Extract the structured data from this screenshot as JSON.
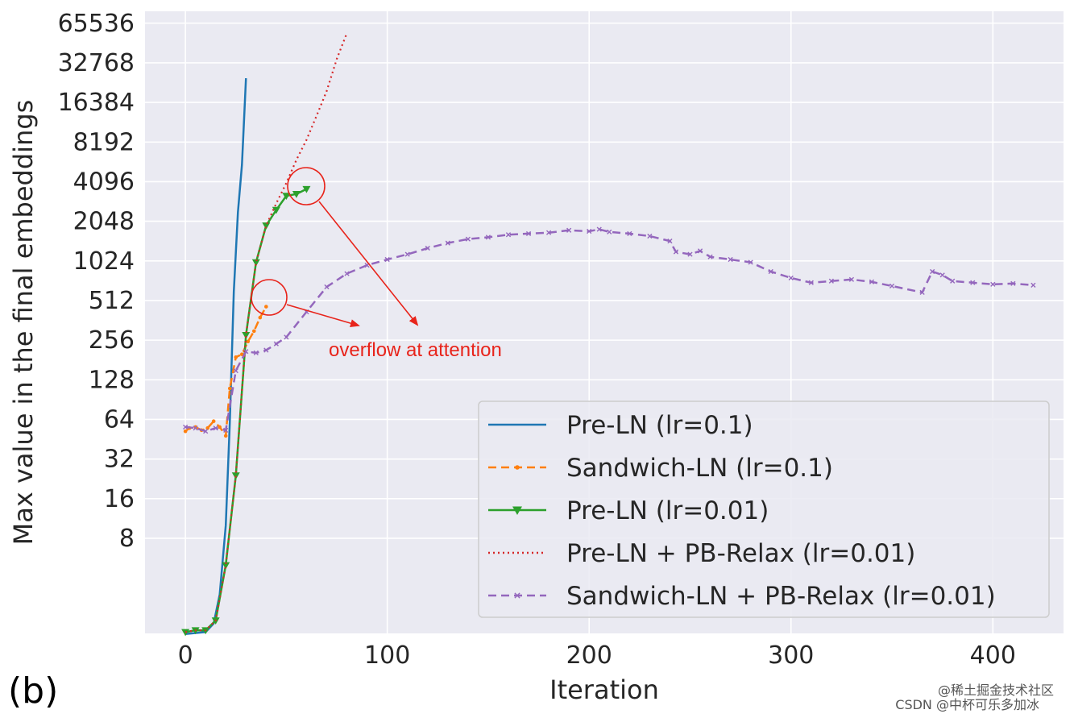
{
  "chart_data": {
    "type": "line",
    "panel_label": "(b)",
    "xlabel": "Iteration",
    "ylabel": "Max value in the final embeddings",
    "xscale": "linear",
    "yscale": "log2",
    "xlim": [
      -20,
      435
    ],
    "ylim_log2": [
      0.6,
      16.3
    ],
    "x_ticks": [
      0,
      100,
      200,
      300,
      400
    ],
    "y_ticks": [
      8,
      16,
      32,
      64,
      128,
      256,
      512,
      1024,
      2048,
      4096,
      8192,
      16384,
      32768,
      65536
    ],
    "y_tick_labels": [
      "8",
      "16",
      "32",
      "64",
      "128",
      "256",
      "512",
      "1024",
      "2048",
      "4096",
      "8192",
      "16384",
      "32768",
      "65536"
    ],
    "grid": true,
    "legend_position": "lower-right",
    "series": [
      {
        "name": "Pre-LN (lr=0.1)",
        "color": "#1f77b4",
        "style": "solid",
        "marker": "none",
        "x": [
          0,
          10,
          14,
          17,
          20,
          22,
          24,
          26,
          28,
          30
        ],
        "y": [
          1.5,
          1.55,
          1.8,
          3,
          10,
          60,
          600,
          2400,
          5500,
          25000
        ]
      },
      {
        "name": "Sandwich-LN (lr=0.1)",
        "color": "#ff7f0e",
        "style": "dashed",
        "marker": "dot",
        "x": [
          0,
          2,
          5,
          8,
          11,
          14,
          17,
          20,
          22,
          25,
          28,
          31,
          34,
          37,
          40
        ],
        "y": [
          52,
          55,
          56,
          53,
          55,
          62,
          56,
          48,
          110,
          190,
          200,
          250,
          300,
          380,
          460
        ]
      },
      {
        "name": "Pre-LN (lr=0.01)",
        "color": "#2ca02c",
        "style": "solid",
        "marker": "triangle-down",
        "x": [
          0,
          5,
          10,
          15,
          20,
          25,
          30,
          35,
          40,
          45,
          50,
          55,
          60
        ],
        "y": [
          1.55,
          1.6,
          1.6,
          1.9,
          5,
          24,
          280,
          1000,
          1900,
          2500,
          3200,
          3300,
          3600
        ]
      },
      {
        "name": "Pre-LN + PB-Relax (lr=0.01)",
        "color": "#d62728",
        "style": "dotted",
        "marker": "none",
        "x": [
          0,
          5,
          10,
          15,
          20,
          25,
          30,
          35,
          40,
          45,
          50,
          55,
          60,
          65,
          70,
          75,
          80
        ],
        "y": [
          1.55,
          1.6,
          1.6,
          1.9,
          5,
          24,
          280,
          1000,
          1900,
          2800,
          4000,
          6000,
          8500,
          13000,
          20000,
          35000,
          55000
        ]
      },
      {
        "name": "Sandwich-LN + PB-Relax (lr=0.01)",
        "color": "#9467bd",
        "style": "dashed",
        "marker": "x",
        "x": [
          0,
          5,
          10,
          15,
          20,
          25,
          30,
          35,
          40,
          45,
          50,
          60,
          70,
          80,
          90,
          100,
          110,
          120,
          130,
          140,
          150,
          160,
          170,
          180,
          190,
          200,
          205,
          210,
          220,
          230,
          240,
          243,
          250,
          255,
          260,
          270,
          280,
          290,
          300,
          310,
          320,
          330,
          340,
          350,
          365,
          370,
          375,
          380,
          390,
          400,
          410,
          420
        ],
        "y": [
          56,
          55,
          52,
          55,
          53,
          150,
          210,
          205,
          215,
          240,
          270,
          420,
          650,
          820,
          950,
          1050,
          1150,
          1280,
          1400,
          1500,
          1550,
          1620,
          1650,
          1680,
          1750,
          1720,
          1780,
          1700,
          1650,
          1580,
          1450,
          1200,
          1150,
          1220,
          1100,
          1050,
          1000,
          850,
          760,
          700,
          720,
          740,
          710,
          660,
          590,
          850,
          800,
          720,
          700,
          680,
          690,
          670
        ]
      }
    ],
    "annotations": [
      {
        "text": "overflow at attention",
        "color": "#e8241b"
      }
    ]
  },
  "watermark": {
    "line1": "@稀土掘金技术社区",
    "line2": "CSDN @中杯可乐多加冰"
  }
}
